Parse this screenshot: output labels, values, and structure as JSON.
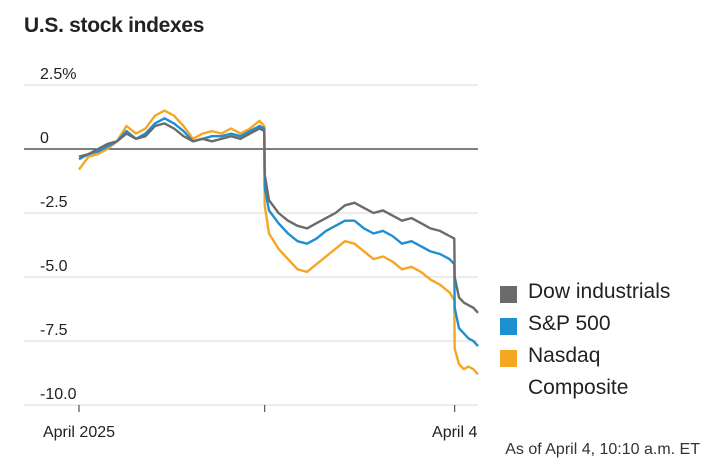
{
  "chart_data": {
    "type": "line",
    "title": "U.S. stock indexes",
    "ylim": [
      -10,
      2.5
    ],
    "yticks": [
      2.5,
      0,
      -2.5,
      -5.0,
      -7.5,
      -10.0
    ],
    "ytick_labels": [
      "2.5%",
      "0",
      "-2.5",
      "-5.0",
      "-7.5",
      "-10.0"
    ],
    "xtick_labels": [
      "April 2025",
      "April 4"
    ],
    "grid": true,
    "legend_position": "right",
    "source_note": "As of April 4, 10:10 a.m. ET",
    "x_units": "trading minutes (Apr 2, 3, 4)",
    "x": [
      0,
      20,
      40,
      60,
      80,
      100,
      120,
      140,
      160,
      180,
      200,
      220,
      240,
      260,
      280,
      300,
      320,
      340,
      360,
      380,
      390,
      391,
      400,
      420,
      440,
      460,
      480,
      500,
      520,
      540,
      560,
      580,
      600,
      620,
      640,
      660,
      680,
      700,
      720,
      740,
      760,
      780,
      790,
      791,
      800,
      810,
      820,
      830,
      840
    ],
    "series": [
      {
        "name": "Dow industrials",
        "color": "#6b6b6b",
        "values": [
          -0.3,
          -0.2,
          0.0,
          0.2,
          0.3,
          0.6,
          0.4,
          0.5,
          0.9,
          1.0,
          0.8,
          0.5,
          0.3,
          0.4,
          0.3,
          0.4,
          0.5,
          0.4,
          0.6,
          0.8,
          0.7,
          -1.0,
          -2.0,
          -2.5,
          -2.8,
          -3.0,
          -3.1,
          -2.9,
          -2.7,
          -2.5,
          -2.2,
          -2.1,
          -2.3,
          -2.5,
          -2.4,
          -2.6,
          -2.8,
          -2.7,
          -2.9,
          -3.1,
          -3.2,
          -3.4,
          -3.5,
          -5.0,
          -5.8,
          -6.0,
          -6.1,
          -6.2,
          -6.4
        ]
      },
      {
        "name": "S&P 500",
        "color": "#1e8fd0",
        "values": [
          -0.4,
          -0.2,
          -0.1,
          0.1,
          0.3,
          0.7,
          0.4,
          0.6,
          1.0,
          1.2,
          1.0,
          0.7,
          0.3,
          0.4,
          0.5,
          0.5,
          0.6,
          0.5,
          0.7,
          0.9,
          0.8,
          -1.5,
          -2.4,
          -2.9,
          -3.3,
          -3.6,
          -3.7,
          -3.5,
          -3.2,
          -3.0,
          -2.8,
          -2.8,
          -3.1,
          -3.3,
          -3.2,
          -3.4,
          -3.7,
          -3.6,
          -3.8,
          -4.0,
          -4.1,
          -4.3,
          -4.5,
          -6.2,
          -7.0,
          -7.2,
          -7.4,
          -7.5,
          -7.7
        ]
      },
      {
        "name": "Nasdaq Composite",
        "color": "#f5a623",
        "values": [
          -0.8,
          -0.3,
          -0.2,
          0.0,
          0.3,
          0.9,
          0.6,
          0.8,
          1.3,
          1.5,
          1.3,
          0.9,
          0.4,
          0.6,
          0.7,
          0.6,
          0.8,
          0.6,
          0.8,
          1.1,
          0.9,
          -2.2,
          -3.3,
          -3.9,
          -4.3,
          -4.7,
          -4.8,
          -4.5,
          -4.2,
          -3.9,
          -3.6,
          -3.7,
          -4.0,
          -4.3,
          -4.2,
          -4.4,
          -4.7,
          -4.6,
          -4.8,
          -5.1,
          -5.3,
          -5.6,
          -5.9,
          -7.8,
          -8.4,
          -8.6,
          -8.5,
          -8.6,
          -8.8
        ]
      }
    ]
  },
  "legend": {
    "items": [
      {
        "label": "Dow industrials",
        "label2": "",
        "color": "#6b6b6b"
      },
      {
        "label": "S&P 500",
        "label2": "",
        "color": "#1e8fd0"
      },
      {
        "label": "Nasdaq",
        "label2": "Composite",
        "color": "#f5a623"
      }
    ]
  }
}
